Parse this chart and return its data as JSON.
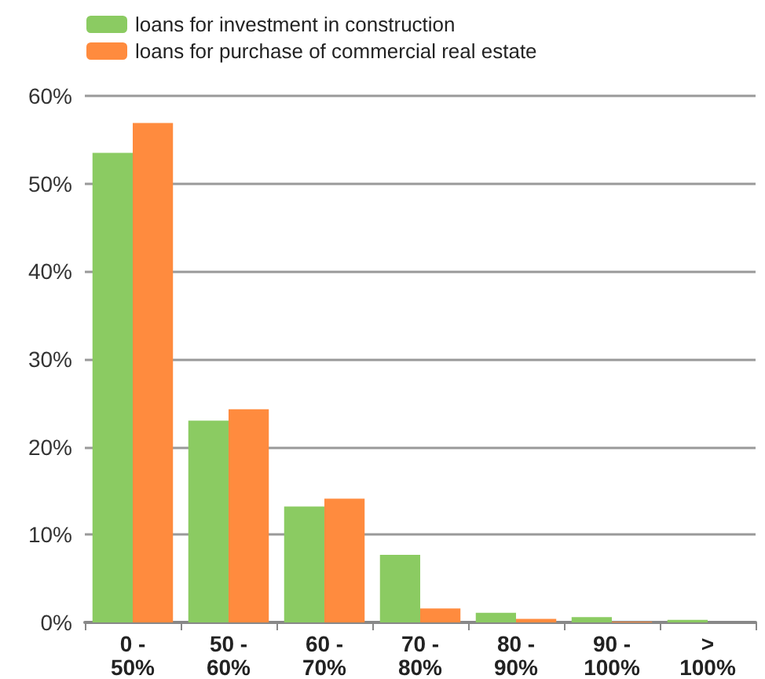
{
  "chart_data": {
    "type": "bar",
    "categories": [
      "0 -\n50%",
      "50 -\n60%",
      "60 -\n70%",
      "70 -\n80%",
      "80 -\n90%",
      "90 -\n100%",
      ">\n100%"
    ],
    "series": [
      {
        "name": "loans for investment in construction",
        "color": "#8bcb62",
        "values": [
          53.5,
          23.0,
          13.2,
          7.7,
          1.1,
          0.6,
          0.3
        ]
      },
      {
        "name": "loans for purchase of commercial real estate",
        "color": "#ff8b3e",
        "values": [
          56.9,
          24.3,
          14.1,
          1.6,
          0.4,
          0.1,
          0
        ]
      }
    ],
    "ylim": [
      0,
      60
    ],
    "yticks": [
      {
        "value": 0,
        "label": "0%"
      },
      {
        "value": 10,
        "label": "10%"
      },
      {
        "value": 20,
        "label": "20%"
      },
      {
        "value": 30,
        "label": "30%"
      },
      {
        "value": 40,
        "label": "40%"
      },
      {
        "value": 50,
        "label": "50%"
      },
      {
        "value": 60,
        "label": "60%"
      }
    ],
    "grid": "y",
    "legend": "top left"
  }
}
